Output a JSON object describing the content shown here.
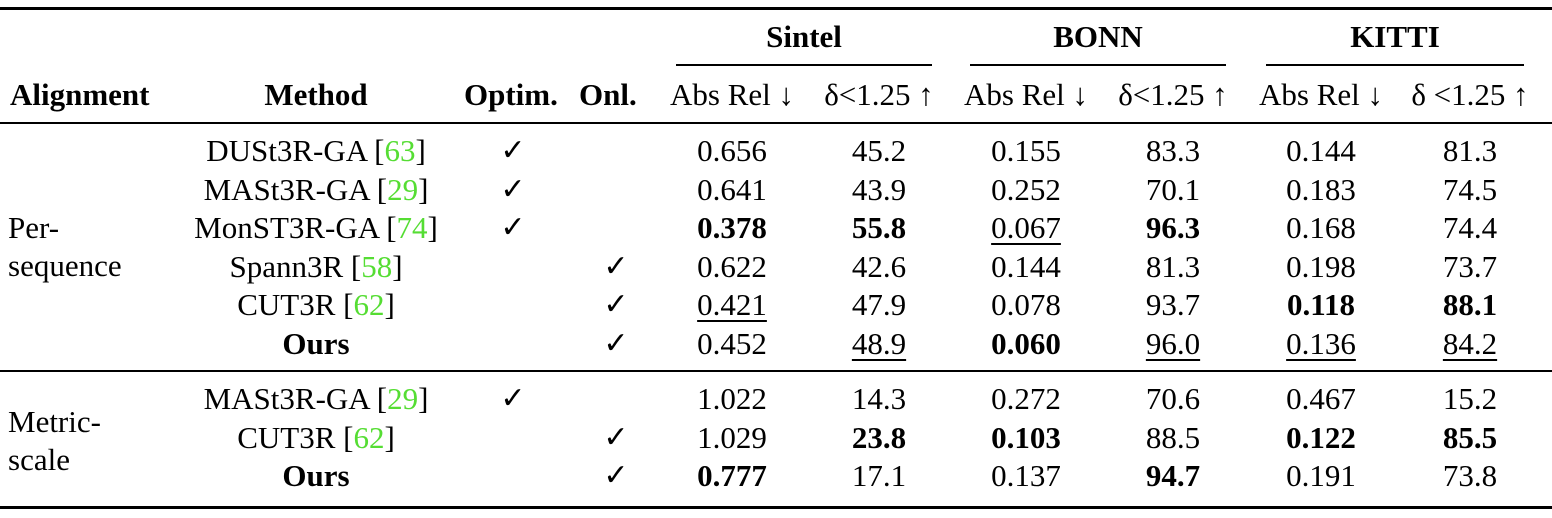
{
  "header": {
    "datasets": [
      {
        "name": "Sintel"
      },
      {
        "name": "BONN"
      },
      {
        "name": "KITTI"
      }
    ],
    "alignment": "Alignment",
    "method": "Method",
    "optim": "Optim.",
    "onl": "Onl.",
    "absrel": "Abs Rel ↓",
    "delta": "δ<1.25 ↑",
    "delta_kitti": "δ <1.25 ↑"
  },
  "groups": [
    {
      "label_line1": "Per-",
      "label_line2": "sequence",
      "rows": [
        {
          "method": "DUSt3R-GA",
          "ref": "63",
          "bold_method": false,
          "optim": true,
          "onl": false,
          "vals": [
            "0.656",
            "45.2",
            "0.155",
            "83.3",
            "0.144",
            "81.3"
          ],
          "bold": [
            false,
            false,
            false,
            false,
            false,
            false
          ],
          "under": [
            false,
            false,
            false,
            false,
            false,
            false
          ]
        },
        {
          "method": "MASt3R-GA",
          "ref": "29",
          "bold_method": false,
          "optim": true,
          "onl": false,
          "vals": [
            "0.641",
            "43.9",
            "0.252",
            "70.1",
            "0.183",
            "74.5"
          ],
          "bold": [
            false,
            false,
            false,
            false,
            false,
            false
          ],
          "under": [
            false,
            false,
            false,
            false,
            false,
            false
          ]
        },
        {
          "method": "MonST3R-GA",
          "ref": "74",
          "bold_method": false,
          "optim": true,
          "onl": false,
          "vals": [
            "0.378",
            "55.8",
            "0.067",
            "96.3",
            "0.168",
            "74.4"
          ],
          "bold": [
            true,
            true,
            false,
            true,
            false,
            false
          ],
          "under": [
            false,
            false,
            true,
            false,
            false,
            false
          ]
        },
        {
          "method": "Spann3R",
          "ref": "58",
          "bold_method": false,
          "optim": false,
          "onl": true,
          "vals": [
            "0.622",
            "42.6",
            "0.144",
            "81.3",
            "0.198",
            "73.7"
          ],
          "bold": [
            false,
            false,
            false,
            false,
            false,
            false
          ],
          "under": [
            false,
            false,
            false,
            false,
            false,
            false
          ]
        },
        {
          "method": "CUT3R",
          "ref": "62",
          "bold_method": false,
          "optim": false,
          "onl": true,
          "vals": [
            "0.421",
            "47.9",
            "0.078",
            "93.7",
            "0.118",
            "88.1"
          ],
          "bold": [
            false,
            false,
            false,
            false,
            true,
            true
          ],
          "under": [
            true,
            false,
            false,
            false,
            false,
            false
          ]
        },
        {
          "method": "Ours",
          "ref": "",
          "bold_method": true,
          "optim": false,
          "onl": true,
          "vals": [
            "0.452",
            "48.9",
            "0.060",
            "96.0",
            "0.136",
            "84.2"
          ],
          "bold": [
            false,
            false,
            true,
            false,
            false,
            false
          ],
          "under": [
            false,
            true,
            false,
            true,
            true,
            true
          ]
        }
      ]
    },
    {
      "label_line1": "Metric-",
      "label_line2": "scale",
      "rows": [
        {
          "method": "MASt3R-GA",
          "ref": "29",
          "bold_method": false,
          "optim": true,
          "onl": false,
          "vals": [
            "1.022",
            "14.3",
            "0.272",
            "70.6",
            "0.467",
            "15.2"
          ],
          "bold": [
            false,
            false,
            false,
            false,
            false,
            false
          ],
          "under": [
            false,
            false,
            false,
            false,
            false,
            false
          ]
        },
        {
          "method": "CUT3R",
          "ref": "62",
          "bold_method": false,
          "optim": false,
          "onl": true,
          "vals": [
            "1.029",
            "23.8",
            "0.103",
            "88.5",
            "0.122",
            "85.5"
          ],
          "bold": [
            false,
            true,
            true,
            false,
            true,
            true
          ],
          "under": [
            false,
            false,
            false,
            false,
            false,
            false
          ]
        },
        {
          "method": "Ours",
          "ref": "",
          "bold_method": true,
          "optim": false,
          "onl": true,
          "vals": [
            "0.777",
            "17.1",
            "0.137",
            "94.7",
            "0.191",
            "73.8"
          ],
          "bold": [
            true,
            false,
            false,
            true,
            false,
            false
          ],
          "under": [
            false,
            false,
            false,
            false,
            false,
            false
          ]
        }
      ]
    }
  ],
  "checkmark": "✓"
}
